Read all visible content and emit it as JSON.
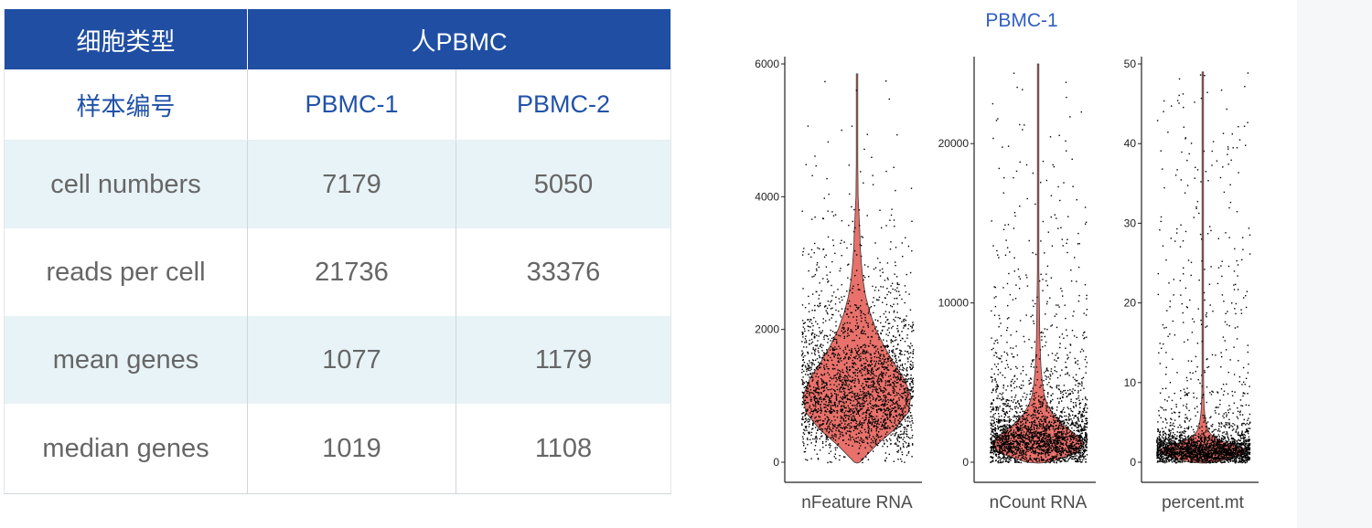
{
  "table": {
    "header_label": "细胞类型",
    "group_label": "人PBMC",
    "sample_label": "样本编号",
    "samples": [
      "PBMC-1",
      "PBMC-2"
    ],
    "rows": [
      {
        "metric": "cell numbers",
        "values": [
          "7179",
          "5050"
        ]
      },
      {
        "metric": "reads per cell",
        "values": [
          "21736",
          "33376"
        ]
      },
      {
        "metric": "mean genes",
        "values": [
          "1077",
          "1179"
        ]
      },
      {
        "metric": "median genes",
        "values": [
          "1019",
          "1108"
        ]
      }
    ],
    "colors": {
      "header_bg": "#1f4ea3",
      "accent_text": "#2152a8",
      "shade_bg": "#e8f3f8",
      "body_text": "#666666"
    }
  },
  "chart_data": {
    "type": "violin",
    "title": "PBMC-1",
    "violin_color": "#e8716b",
    "point_color": "#000000",
    "panels": [
      {
        "xlabel": "nFeature RNA",
        "ylim": [
          0,
          6000
        ],
        "ticks": [
          0,
          2000,
          4000,
          6000
        ],
        "n_cells": 7179,
        "median": 1019,
        "max": 5850,
        "density_profile": [
          [
            0,
            0.05
          ],
          [
            250,
            0.35
          ],
          [
            500,
            0.7
          ],
          [
            750,
            0.95
          ],
          [
            1000,
            1.0
          ],
          [
            1250,
            0.88
          ],
          [
            1500,
            0.68
          ],
          [
            1750,
            0.5
          ],
          [
            2000,
            0.35
          ],
          [
            2250,
            0.24
          ],
          [
            2500,
            0.16
          ],
          [
            2750,
            0.11
          ],
          [
            3000,
            0.08
          ],
          [
            3250,
            0.06
          ],
          [
            3500,
            0.05
          ],
          [
            3750,
            0.035
          ],
          [
            4000,
            0.02
          ],
          [
            4500,
            0.012
          ],
          [
            5000,
            0.008
          ],
          [
            5850,
            0.005
          ]
        ]
      },
      {
        "xlabel": "nCount RNA",
        "ylim": [
          0,
          25000
        ],
        "ticks": [
          0,
          10000,
          20000
        ],
        "n_cells": 7179,
        "median": 1500,
        "max": 25000,
        "density_profile": [
          [
            0,
            0.25
          ],
          [
            600,
            0.85
          ],
          [
            1200,
            1.0
          ],
          [
            1800,
            0.78
          ],
          [
            2400,
            0.52
          ],
          [
            3000,
            0.32
          ],
          [
            3600,
            0.2
          ],
          [
            4200,
            0.13
          ],
          [
            5000,
            0.09
          ],
          [
            6000,
            0.06
          ],
          [
            7000,
            0.045
          ],
          [
            8000,
            0.035
          ],
          [
            10000,
            0.025
          ],
          [
            12000,
            0.015
          ],
          [
            15000,
            0.01
          ],
          [
            20000,
            0.006
          ],
          [
            25000,
            0.004
          ]
        ]
      },
      {
        "xlabel": "percent.mt",
        "ylim": [
          0,
          50
        ],
        "ticks": [
          0,
          10,
          20,
          30,
          40,
          50
        ],
        "n_cells": 7179,
        "median": 1.5,
        "max": 49,
        "density_profile": [
          [
            0,
            0.3
          ],
          [
            0.5,
            0.65
          ],
          [
            1,
            0.9
          ],
          [
            1.5,
            1.0
          ],
          [
            2,
            0.8
          ],
          [
            2.5,
            0.5
          ],
          [
            3,
            0.3
          ],
          [
            3.5,
            0.18
          ],
          [
            4,
            0.12
          ],
          [
            5,
            0.07
          ],
          [
            6,
            0.045
          ],
          [
            7,
            0.03
          ],
          [
            9,
            0.02
          ],
          [
            12,
            0.012
          ],
          [
            20,
            0.008
          ],
          [
            30,
            0.006
          ],
          [
            49,
            0.004
          ]
        ]
      }
    ]
  }
}
